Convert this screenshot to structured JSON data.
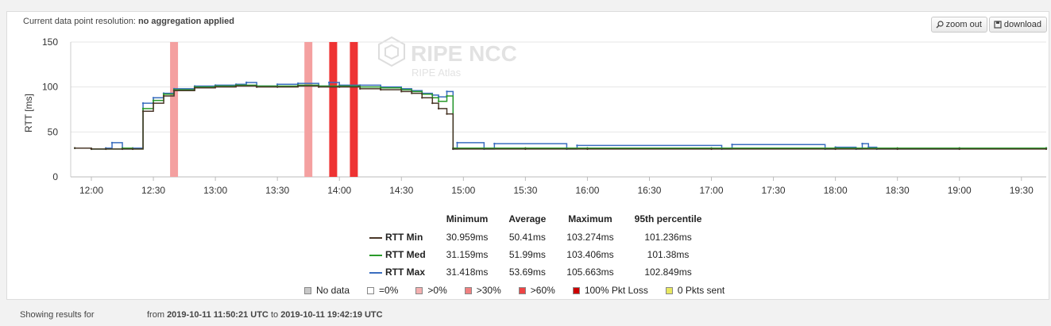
{
  "resolution": {
    "label": "Current data point resolution:",
    "value": "no aggregation applied"
  },
  "toolbar": {
    "zoom_out": "zoom out",
    "download": "download"
  },
  "watermark": {
    "title": "RIPE NCC",
    "subtitle": "RIPE Atlas"
  },
  "chart_data": {
    "type": "line",
    "ylabel": "RTT [ms]",
    "ylim": [
      0,
      150
    ],
    "yticks": [
      0,
      50,
      100,
      150
    ],
    "xlim": [
      "11:50",
      "19:42"
    ],
    "xticks": [
      "12:00",
      "12:30",
      "13:00",
      "13:30",
      "14:00",
      "14:30",
      "15:00",
      "15:30",
      "16:00",
      "16:30",
      "17:00",
      "17:30",
      "18:00",
      "18:30",
      "19:00",
      "19:30"
    ],
    "grid": "horizontal",
    "loss_bands": [
      {
        "time": "12:40",
        "level": ">30%"
      },
      {
        "time": "13:45",
        "level": ">30%"
      },
      {
        "time": "13:57",
        "level": "100% Pkt Loss"
      },
      {
        "time": "14:07",
        "level": "100% Pkt Loss"
      }
    ],
    "series": [
      {
        "name": "RTT Min",
        "color": "#4a3728",
        "x": [
          "11:52",
          "12:00",
          "12:07",
          "12:15",
          "12:20",
          "12:25",
          "12:30",
          "12:35",
          "12:40",
          "12:50",
          "13:00",
          "13:10",
          "13:20",
          "13:30",
          "13:40",
          "13:50",
          "14:00",
          "14:10",
          "14:20",
          "14:30",
          "14:35",
          "14:40",
          "14:45",
          "14:48",
          "14:52",
          "14:55",
          "15:30",
          "16:00",
          "17:00",
          "18:00",
          "18:30",
          "19:00",
          "19:42"
        ],
        "y": [
          32,
          31,
          31,
          31,
          31,
          73,
          82,
          90,
          96,
          99,
          100,
          101,
          100,
          100,
          101,
          100,
          100,
          98,
          97,
          95,
          93,
          88,
          82,
          76,
          70,
          31,
          31,
          31,
          31,
          31,
          31,
          31,
          31
        ]
      },
      {
        "name": "RTT Med",
        "color": "#2a9a2a",
        "x": [
          "11:52",
          "12:00",
          "12:07",
          "12:15",
          "12:20",
          "12:25",
          "12:30",
          "12:35",
          "12:40",
          "12:50",
          "13:00",
          "13:10",
          "13:20",
          "13:30",
          "13:40",
          "13:50",
          "14:00",
          "14:10",
          "14:20",
          "14:30",
          "14:35",
          "14:40",
          "14:45",
          "14:48",
          "14:52",
          "14:55",
          "15:30",
          "16:00",
          "17:00",
          "18:00",
          "18:30",
          "19:00",
          "19:42"
        ],
        "y": [
          32,
          31,
          31,
          32,
          31,
          76,
          85,
          92,
          97,
          100,
          101,
          102,
          101,
          101,
          102,
          101,
          101,
          100,
          99,
          97,
          95,
          92,
          88,
          84,
          90,
          32,
          32,
          32,
          32,
          32,
          32,
          32,
          32
        ]
      },
      {
        "name": "RTT Max",
        "color": "#3a6dbf",
        "x": [
          "11:52",
          "12:00",
          "12:07",
          "12:10",
          "12:15",
          "12:20",
          "12:25",
          "12:30",
          "12:35",
          "12:40",
          "12:50",
          "13:00",
          "13:10",
          "13:15",
          "13:20",
          "13:30",
          "13:40",
          "13:50",
          "13:55",
          "14:00",
          "14:10",
          "14:20",
          "14:30",
          "14:35",
          "14:40",
          "14:45",
          "14:48",
          "14:52",
          "14:55",
          "14:57",
          "15:10",
          "15:15",
          "15:50",
          "15:55",
          "17:05",
          "17:10",
          "17:55",
          "18:00",
          "18:10",
          "18:13",
          "18:16",
          "18:20",
          "19:00",
          "19:42"
        ],
        "y": [
          32,
          31,
          32,
          38,
          31,
          32,
          82,
          88,
          93,
          98,
          101,
          102,
          103,
          105,
          101,
          103,
          104,
          101,
          105,
          102,
          102,
          100,
          98,
          96,
          93,
          91,
          89,
          95,
          31,
          38,
          31,
          37,
          31,
          35,
          31,
          36,
          31,
          33,
          31,
          37,
          33,
          31,
          32,
          32
        ]
      }
    ]
  },
  "stats": {
    "headers": [
      "Minimum",
      "Average",
      "Maximum",
      "95th percentile"
    ],
    "rows": [
      {
        "name": "RTT Min",
        "color": "#4a3728",
        "min": "30.959ms",
        "avg": "50.41ms",
        "max": "103.274ms",
        "p95": "101.236ms"
      },
      {
        "name": "RTT Med",
        "color": "#2a9a2a",
        "min": "31.159ms",
        "avg": "51.99ms",
        "max": "103.406ms",
        "p95": "101.38ms"
      },
      {
        "name": "RTT Max",
        "color": "#3a6dbf",
        "min": "31.418ms",
        "avg": "53.69ms",
        "max": "105.663ms",
        "p95": "102.849ms"
      }
    ]
  },
  "legend": [
    {
      "label": "No data",
      "color": "#c8c8c8"
    },
    {
      "label": "=0%",
      "color": "#ffffff"
    },
    {
      "label": ">0%",
      "color": "#f4b0b0"
    },
    {
      "label": ">30%",
      "color": "#f08080"
    },
    {
      "label": ">60%",
      "color": "#ee4444"
    },
    {
      "label": "100% Pkt Loss",
      "color": "#cc0000"
    },
    {
      "label": "0 Pkts sent",
      "color": "#e8e860"
    }
  ],
  "footer": {
    "label": "Showing results for",
    "from": "from",
    "start": "2019-10-11 11:50:21 UTC",
    "to": "to",
    "end": "2019-10-11 19:42:19 UTC"
  }
}
